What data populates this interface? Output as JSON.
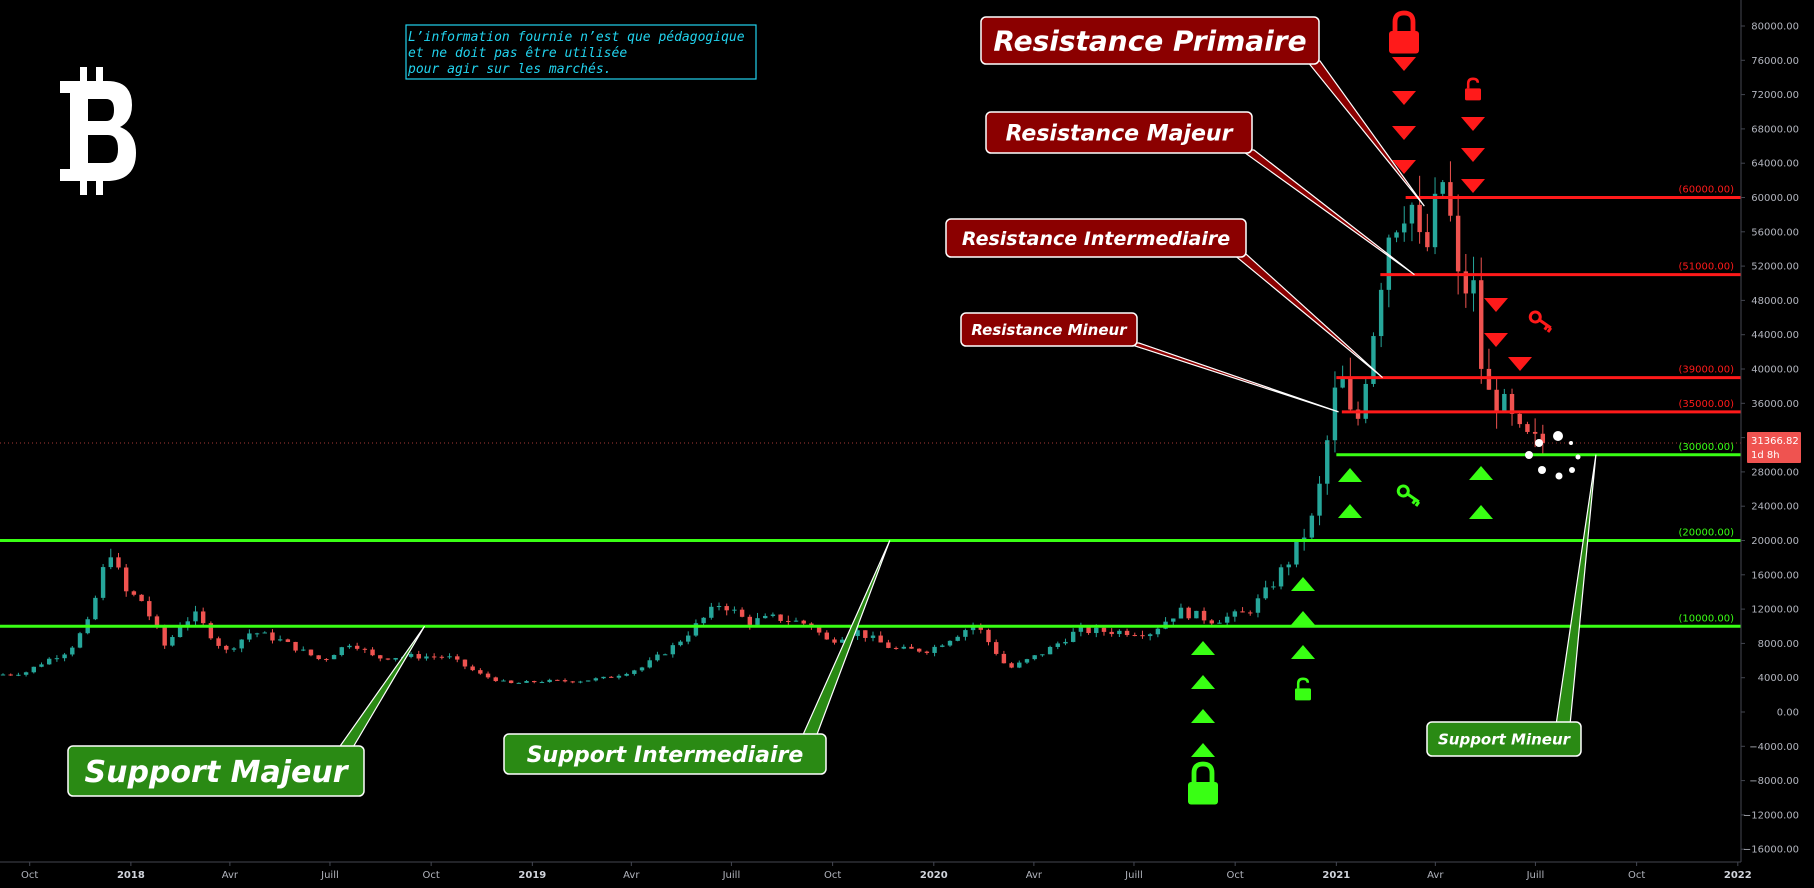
{
  "chart_data": {
    "type": "candlestick",
    "price_axis": {
      "min": -16000,
      "max": 80000,
      "step": 4000,
      "tick_labels": [
        "80000.00",
        "76000.00",
        "72000.00",
        "68000.00",
        "64000.00",
        "60000.00",
        "56000.00",
        "52000.00",
        "48000.00",
        "44000.00",
        "40000.00",
        "36000.00",
        "32000.00",
        "28000.00",
        "24000.00",
        "20000.00",
        "16000.00",
        "12000.00",
        "8000.00",
        "4000.00",
        "0.00",
        "−4000.00",
        "−8000.00",
        "−12000.00",
        "−16000.00"
      ]
    },
    "time_axis": {
      "start": "2017-09-04",
      "end": "2022-01-03",
      "tick_labels": [
        {
          "label": "Oct",
          "date": "2017-10-01",
          "bold": false
        },
        {
          "label": "2018",
          "date": "2018-01-01",
          "bold": true
        },
        {
          "label": "Avr",
          "date": "2018-04-01",
          "bold": false
        },
        {
          "label": "Juill",
          "date": "2018-07-01",
          "bold": false
        },
        {
          "label": "Oct",
          "date": "2018-10-01",
          "bold": false
        },
        {
          "label": "2019",
          "date": "2019-01-01",
          "bold": true
        },
        {
          "label": "Avr",
          "date": "2019-04-01",
          "bold": false
        },
        {
          "label": "Juill",
          "date": "2019-07-01",
          "bold": false
        },
        {
          "label": "Oct",
          "date": "2019-10-01",
          "bold": false
        },
        {
          "label": "2020",
          "date": "2020-01-01",
          "bold": true
        },
        {
          "label": "Avr",
          "date": "2020-04-01",
          "bold": false
        },
        {
          "label": "Juill",
          "date": "2020-07-01",
          "bold": false
        },
        {
          "label": "Oct",
          "date": "2020-10-01",
          "bold": false
        },
        {
          "label": "2021",
          "date": "2021-01-01",
          "bold": true
        },
        {
          "label": "Avr",
          "date": "2021-04-01",
          "bold": false
        },
        {
          "label": "Juill",
          "date": "2021-07-01",
          "bold": false
        },
        {
          "label": "Oct",
          "date": "2021-10-01",
          "bold": false
        },
        {
          "label": "2022",
          "date": "2022-01-01",
          "bold": true
        }
      ]
    },
    "current_price": {
      "value": 31366.82,
      "label": "31366.82",
      "countdown": "1d 8h"
    },
    "price_path": [
      [
        "2017-09-04",
        4300
      ],
      [
        "2017-10-01",
        4600
      ],
      [
        "2017-10-20",
        6000
      ],
      [
        "2017-11-10",
        7200
      ],
      [
        "2017-11-28",
        10500
      ],
      [
        "2017-12-17",
        19200
      ],
      [
        "2017-12-31",
        14000
      ],
      [
        "2018-01-15",
        13000
      ],
      [
        "2018-02-06",
        7500
      ],
      [
        "2018-02-20",
        10500
      ],
      [
        "2018-03-05",
        11200
      ],
      [
        "2018-04-01",
        7000
      ],
      [
        "2018-04-25",
        9400
      ],
      [
        "2018-05-20",
        8400
      ],
      [
        "2018-06-28",
        6000
      ],
      [
        "2018-07-25",
        8200
      ],
      [
        "2018-08-15",
        6300
      ],
      [
        "2018-09-15",
        6500
      ],
      [
        "2018-10-20",
        6450
      ],
      [
        "2018-11-20",
        4300
      ],
      [
        "2018-12-15",
        3300
      ],
      [
        "2019-01-15",
        3600
      ],
      [
        "2019-02-15",
        3600
      ],
      [
        "2019-03-15",
        4000
      ],
      [
        "2019-04-15",
        5200
      ],
      [
        "2019-05-15",
        7800
      ],
      [
        "2019-06-26",
        12800
      ],
      [
        "2019-07-20",
        10500
      ],
      [
        "2019-08-15",
        11000
      ],
      [
        "2019-09-15",
        10200
      ],
      [
        "2019-10-01",
        8200
      ],
      [
        "2019-10-26",
        9500
      ],
      [
        "2019-11-30",
        7300
      ],
      [
        "2020-01-01",
        7200
      ],
      [
        "2020-02-12",
        10300
      ],
      [
        "2020-03-13",
        5000
      ],
      [
        "2020-04-15",
        7000
      ],
      [
        "2020-05-15",
        9500
      ],
      [
        "2020-06-15",
        9400
      ],
      [
        "2020-07-20",
        9300
      ],
      [
        "2020-08-15",
        11800
      ],
      [
        "2020-09-15",
        10700
      ],
      [
        "2020-10-15",
        11500
      ],
      [
        "2020-11-01",
        13700
      ],
      [
        "2020-11-25",
        18000
      ],
      [
        "2020-12-17",
        23000
      ],
      [
        "2021-01-08",
        40000
      ],
      [
        "2021-01-22",
        32000
      ],
      [
        "2021-02-08",
        45000
      ],
      [
        "2021-02-21",
        56000
      ],
      [
        "2021-03-13",
        60500
      ],
      [
        "2021-03-25",
        52000
      ],
      [
        "2021-04-14",
        63000
      ],
      [
        "2021-04-25",
        50000
      ],
      [
        "2021-05-12",
        49000
      ],
      [
        "2021-05-19",
        37000
      ],
      [
        "2021-06-02",
        36500
      ],
      [
        "2021-06-22",
        32000
      ],
      [
        "2021-07-05",
        31366.82
      ]
    ],
    "levels": [
      {
        "label": "(60000.00)",
        "value": 60000,
        "color": "#ff1a1a",
        "start": "2021-03-05"
      },
      {
        "label": "(51000.00)",
        "value": 51000,
        "color": "#ff1a1a",
        "start": "2021-02-10"
      },
      {
        "label": "(39000.00)",
        "value": 39000,
        "color": "#ff1a1a",
        "start": "2021-01-01"
      },
      {
        "label": "(35000.00)",
        "value": 35000,
        "color": "#ff1a1a",
        "start": "2021-01-06"
      },
      {
        "label": "(30000.00)",
        "value": 30000,
        "color": "#39ff14",
        "start": "2021-01-01"
      },
      {
        "label": "(20000.00)",
        "value": 20000,
        "color": "#39ff14",
        "start": "2017-09-04"
      },
      {
        "label": "(10000.00)",
        "value": 10000,
        "color": "#39ff14",
        "start": "2017-09-04"
      }
    ],
    "resistance_callouts": [
      {
        "text": "Resistance Primaire",
        "target_date": "2021-03-22",
        "target_value": 59000
      },
      {
        "text": "Resistance Majeur",
        "target_date": "2021-03-13",
        "target_value": 51000
      },
      {
        "text": "Resistance Intermediaire",
        "target_date": "2021-02-12",
        "target_value": 39000
      },
      {
        "text": "Resistance Mineur",
        "target_date": "2021-01-03",
        "target_value": 35000
      }
    ],
    "support_callouts": [
      {
        "text": "Support Majeur",
        "target_date": "2018-09-25",
        "target_value": 10000
      },
      {
        "text": "Support Intermediaire",
        "target_date": "2019-11-22",
        "target_value": 20000
      },
      {
        "text": "Support Mineur",
        "target_date": "2021-08-25",
        "target_value": 30000
      }
    ]
  },
  "disclaimer": {
    "lines": [
      "L’information fournie n’est que pédagogique",
      "et ne doit pas être utilisée",
      "pour agir sur les marchés."
    ]
  },
  "logo": {
    "symbol": "฿",
    "name": "bitcoin-logo-icon"
  },
  "colors": {
    "background": "#000000",
    "bull": "#26a69a",
    "bear": "#ef5350",
    "resistance": "#ff1a1a",
    "support": "#39ff14",
    "callout_red": "#8b0000",
    "callout_green": "#2a8a14"
  }
}
